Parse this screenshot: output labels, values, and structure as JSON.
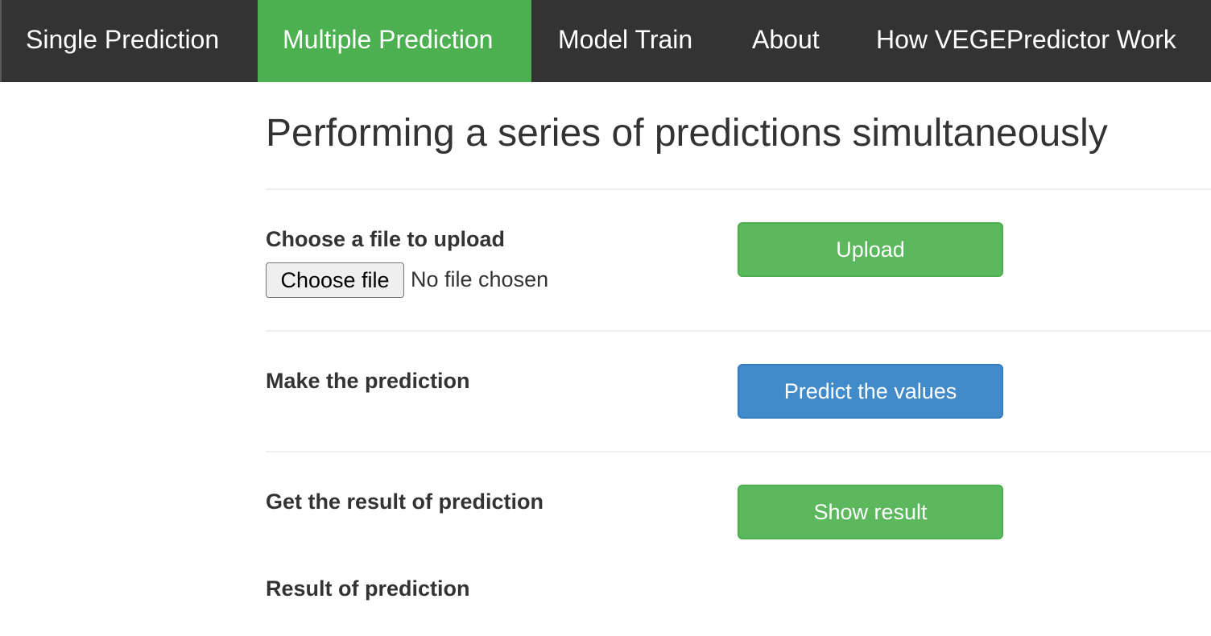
{
  "nav": {
    "items": [
      {
        "label": "Single Prediction"
      },
      {
        "label": "Multiple Prediction",
        "active": true
      },
      {
        "label": "Model Train"
      },
      {
        "label": "About"
      },
      {
        "label": "How VEGEPredictor Work"
      }
    ]
  },
  "main": {
    "title": "Performing a series of predictions simultaneously",
    "upload_section": {
      "label": "Choose a file to upload",
      "file_button_label": "Choose file",
      "file_status": "No file chosen",
      "upload_button_label": "Upload"
    },
    "predict_section": {
      "label": "Make the prediction",
      "button_label": "Predict the values"
    },
    "result_section": {
      "label": "Get the result of prediction",
      "button_label": "Show result"
    },
    "result_heading": "Result of prediction"
  },
  "colors": {
    "navbar_bg": "#333333",
    "nav_active_bg": "#4caf50",
    "green_button": "#5cb85c",
    "blue_button": "#428bca"
  }
}
